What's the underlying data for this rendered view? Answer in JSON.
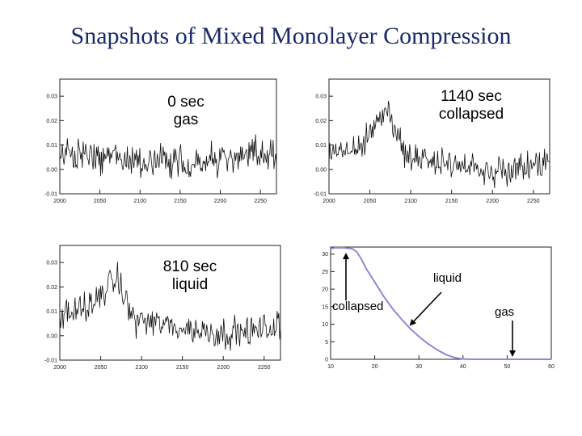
{
  "slide": {
    "title": "Snapshots of Mixed Monolayer Compression"
  },
  "chart_data": [
    {
      "type": "line",
      "label_lines": [
        "0 sec",
        "gas"
      ],
      "x_ticks": [
        2000,
        2050,
        2100,
        2150,
        2200,
        2250
      ],
      "y_ticks": [
        -0.01,
        0.0,
        0.01,
        0.02,
        0.03
      ],
      "y_tick_labels": [
        "-0.01",
        "0.00",
        "0.01",
        "0.02",
        "0.03"
      ],
      "xlim": [
        2000,
        2270
      ],
      "ylim": [
        -0.01,
        0.037
      ],
      "profile": [
        [
          2000,
          0.006
        ],
        [
          2060,
          0.005
        ],
        [
          2120,
          0.003
        ],
        [
          2180,
          0.003
        ],
        [
          2230,
          0.005
        ],
        [
          2270,
          0.007
        ]
      ],
      "noise": 0.007,
      "grid": false
    },
    {
      "type": "line",
      "label_lines": [
        "1140 sec",
        "collapsed"
      ],
      "x_ticks": [
        2000,
        2050,
        2100,
        2150,
        2200,
        2250
      ],
      "y_ticks": [
        -0.01,
        0.0,
        0.01,
        0.02,
        0.03
      ],
      "y_tick_labels": [
        "-0.01",
        "0.00",
        "0.01",
        "0.02",
        "0.03"
      ],
      "xlim": [
        2000,
        2270
      ],
      "ylim": [
        -0.01,
        0.037
      ],
      "profile": [
        [
          2000,
          0.006
        ],
        [
          2030,
          0.009
        ],
        [
          2050,
          0.016
        ],
        [
          2065,
          0.023
        ],
        [
          2075,
          0.025
        ],
        [
          2085,
          0.012
        ],
        [
          2092,
          0.005
        ],
        [
          2150,
          0.002
        ],
        [
          2200,
          0.0
        ],
        [
          2240,
          0.002
        ],
        [
          2270,
          0.003
        ]
      ],
      "noise": 0.006,
      "grid": false
    },
    {
      "type": "line",
      "label_lines": [
        "810 sec",
        "liquid"
      ],
      "x_ticks": [
        2000,
        2050,
        2100,
        2150,
        2200,
        2250
      ],
      "y_ticks": [
        -0.01,
        0.0,
        0.01,
        0.02,
        0.03
      ],
      "y_tick_labels": [
        "-0.01",
        "0.00",
        "0.01",
        "0.02",
        "0.03"
      ],
      "xlim": [
        2000,
        2270
      ],
      "ylim": [
        -0.01,
        0.037
      ],
      "profile": [
        [
          2000,
          0.008
        ],
        [
          2040,
          0.012
        ],
        [
          2060,
          0.021
        ],
        [
          2070,
          0.023
        ],
        [
          2080,
          0.015
        ],
        [
          2090,
          0.007
        ],
        [
          2150,
          0.003
        ],
        [
          2200,
          0.001
        ],
        [
          2240,
          0.002
        ],
        [
          2270,
          0.004
        ]
      ],
      "noise": 0.006,
      "grid": false
    },
    {
      "type": "line",
      "x_ticks": [
        10,
        20,
        30,
        40,
        50,
        60
      ],
      "y_ticks": [
        0,
        5,
        10,
        15,
        20,
        25,
        30
      ],
      "xlim": [
        10,
        60
      ],
      "ylim": [
        0,
        32
      ],
      "series": [
        {
          "color": "#8a8ad6",
          "points": [
            [
              10,
              31.5
            ],
            [
              11,
              31.8
            ],
            [
              13,
              31.8
            ],
            [
              15,
              31.5
            ],
            [
              16,
              30.5
            ],
            [
              17,
              28.5
            ],
            [
              18,
              26.0
            ],
            [
              20,
              22.0
            ],
            [
              22,
              18.0
            ],
            [
              24,
              14.5
            ],
            [
              26,
              11.5
            ],
            [
              28,
              8.8
            ],
            [
              30,
              6.5
            ],
            [
              32,
              4.5
            ],
            [
              34,
              2.8
            ],
            [
              36,
              1.4
            ],
            [
              38,
              0.5
            ],
            [
              40,
              0.1
            ],
            [
              42,
              0.0
            ],
            [
              60,
              0.0
            ]
          ]
        }
      ],
      "grid": false
    }
  ],
  "annotations": {
    "liquid": "liquid",
    "collapsed": "collapsed",
    "gas": "gas"
  }
}
